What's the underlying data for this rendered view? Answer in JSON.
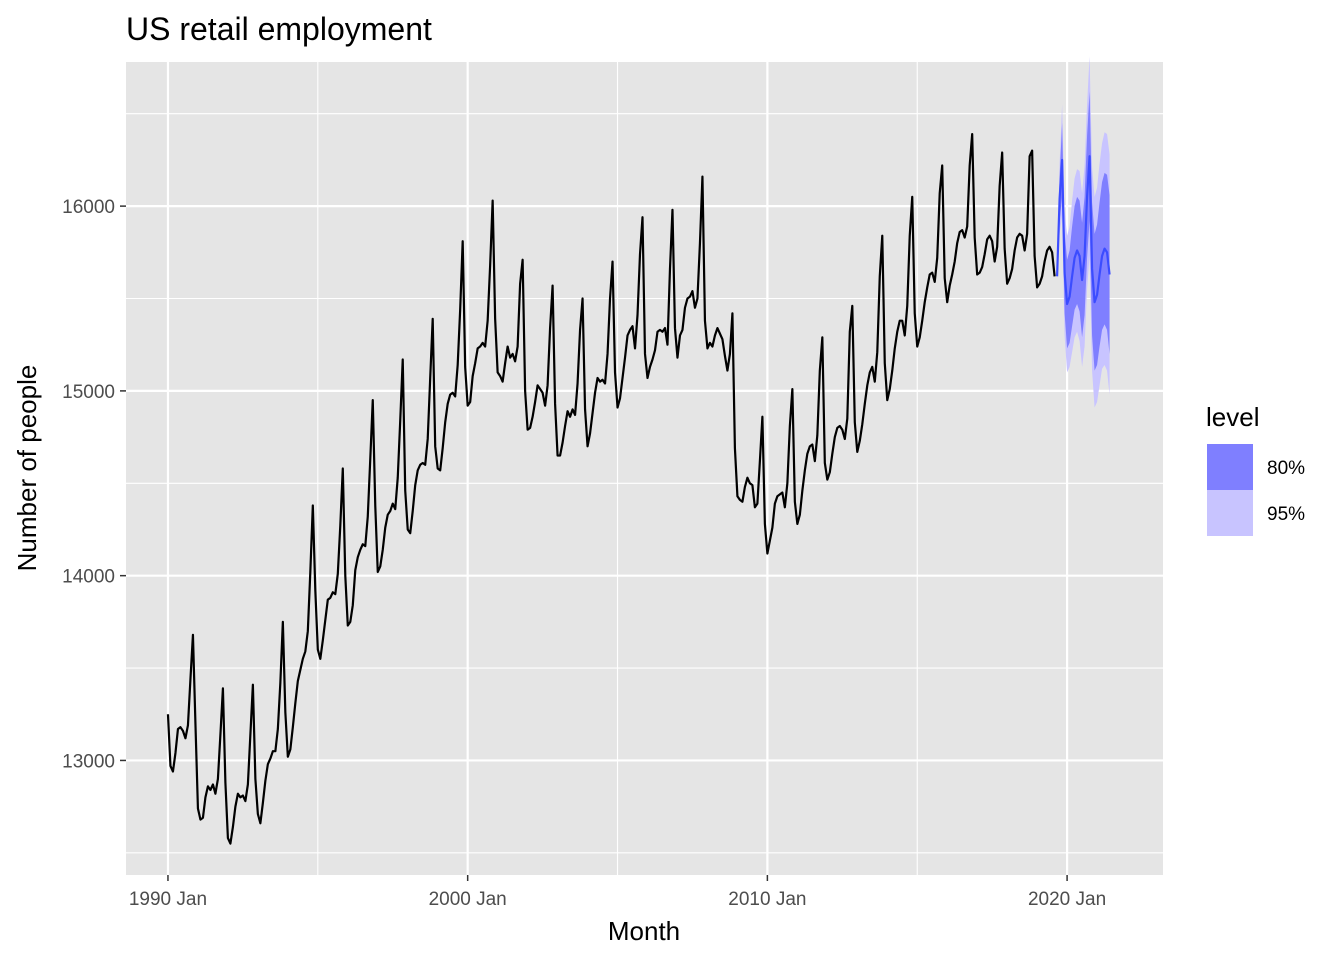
{
  "chart_data": {
    "type": "line",
    "title": "US retail employment",
    "xlabel": "Month",
    "ylabel": "Number of people",
    "xlim": [
      1988.6,
      2023.2
    ],
    "ylim": [
      12380,
      16780
    ],
    "x_ticks": [
      {
        "value": 1990,
        "label": "1990 Jan"
      },
      {
        "value": 2000,
        "label": "2000 Jan"
      },
      {
        "value": 2010,
        "label": "2010 Jan"
      },
      {
        "value": 2020,
        "label": "2020 Jan"
      }
    ],
    "y_ticks": [
      13000,
      14000,
      15000,
      16000
    ],
    "grid": true,
    "legend": {
      "title": "level",
      "placement": "right",
      "items": [
        {
          "label": "80%",
          "color": "#7f7fff"
        },
        {
          "label": "95%",
          "color": "#c8c4ff"
        }
      ]
    },
    "colors": {
      "panel": "#e5e5e5",
      "grid": "#ffffff",
      "history": "#000000",
      "forecast": "#3b4cff"
    },
    "history_yearly": [
      {
        "year": 1990,
        "values": [
          13250,
          12970,
          12940,
          13040,
          13170,
          13180,
          13160,
          13120,
          13190,
          13440,
          13680,
          13200
        ]
      },
      {
        "year": 1991,
        "values": [
          12740,
          12680,
          12690,
          12800,
          12860,
          12840,
          12870,
          12820,
          12900,
          13140,
          13390,
          12880
        ]
      },
      {
        "year": 1992,
        "values": [
          12580,
          12550,
          12640,
          12750,
          12820,
          12800,
          12810,
          12780,
          12870,
          13140,
          13410,
          12900
        ]
      },
      {
        "year": 1993,
        "values": [
          12710,
          12660,
          12770,
          12890,
          12980,
          13010,
          13050,
          13050,
          13170,
          13420,
          13750,
          13260
        ]
      },
      {
        "year": 1994,
        "values": [
          13020,
          13060,
          13180,
          13310,
          13430,
          13490,
          13550,
          13590,
          13700,
          14020,
          14380,
          13920
        ]
      },
      {
        "year": 1995,
        "values": [
          13600,
          13550,
          13650,
          13760,
          13870,
          13880,
          13910,
          13900,
          14010,
          14270,
          14580,
          14000
        ]
      },
      {
        "year": 1996,
        "values": [
          13730,
          13750,
          13840,
          14030,
          14100,
          14140,
          14170,
          14160,
          14320,
          14630,
          14950,
          14380
        ]
      },
      {
        "year": 1997,
        "values": [
          14020,
          14050,
          14140,
          14260,
          14330,
          14350,
          14390,
          14360,
          14530,
          14840,
          15170,
          14460
        ]
      },
      {
        "year": 1998,
        "values": [
          14250,
          14230,
          14350,
          14490,
          14570,
          14600,
          14610,
          14600,
          14740,
          15070,
          15390,
          14700
        ]
      },
      {
        "year": 1999,
        "values": [
          14580,
          14570,
          14690,
          14830,
          14930,
          14980,
          14990,
          14970,
          15140,
          15440,
          15810,
          15130
        ]
      },
      {
        "year": 2000,
        "values": [
          14920,
          14940,
          15080,
          15150,
          15230,
          15240,
          15260,
          15240,
          15380,
          15680,
          16030,
          15390
        ]
      },
      {
        "year": 2001,
        "values": [
          15100,
          15080,
          15050,
          15150,
          15240,
          15180,
          15200,
          15160,
          15240,
          15580,
          15710,
          15000
        ]
      },
      {
        "year": 2002,
        "values": [
          14790,
          14800,
          14860,
          14940,
          15030,
          15010,
          14990,
          14920,
          15030,
          15340,
          15570,
          14930
        ]
      },
      {
        "year": 2003,
        "values": [
          14650,
          14650,
          14720,
          14810,
          14890,
          14860,
          14900,
          14870,
          15040,
          15330,
          15500,
          14900
        ]
      },
      {
        "year": 2004,
        "values": [
          14700,
          14770,
          14880,
          14990,
          15070,
          15050,
          15060,
          15040,
          15200,
          15500,
          15700,
          15100
        ]
      },
      {
        "year": 2005,
        "values": [
          14910,
          14960,
          15070,
          15180,
          15300,
          15330,
          15350,
          15230,
          15410,
          15740,
          15940,
          15200
        ]
      },
      {
        "year": 2006,
        "values": [
          15070,
          15130,
          15170,
          15220,
          15320,
          15330,
          15320,
          15340,
          15250,
          15660,
          15980,
          15340
        ]
      },
      {
        "year": 2007,
        "values": [
          15180,
          15300,
          15330,
          15450,
          15500,
          15510,
          15540,
          15450,
          15500,
          15800,
          16160,
          15380
        ]
      },
      {
        "year": 2008,
        "values": [
          15230,
          15260,
          15240,
          15300,
          15340,
          15310,
          15280,
          15190,
          15110,
          15200,
          15420,
          14690
        ]
      },
      {
        "year": 2009,
        "values": [
          14430,
          14410,
          14400,
          14480,
          14530,
          14500,
          14490,
          14370,
          14390,
          14620,
          14860,
          14280
        ]
      },
      {
        "year": 2010,
        "values": [
          14120,
          14190,
          14260,
          14390,
          14430,
          14440,
          14450,
          14370,
          14500,
          14810,
          15010,
          14400
        ]
      },
      {
        "year": 2011,
        "values": [
          14280,
          14330,
          14460,
          14570,
          14660,
          14700,
          14710,
          14620,
          14760,
          15110,
          15290,
          14610
        ]
      },
      {
        "year": 2012,
        "values": [
          14520,
          14560,
          14660,
          14750,
          14800,
          14810,
          14790,
          14740,
          14850,
          15320,
          15460,
          14830
        ]
      },
      {
        "year": 2013,
        "values": [
          14670,
          14730,
          14820,
          14930,
          15030,
          15100,
          15130,
          15050,
          15210,
          15620,
          15840,
          15150
        ]
      },
      {
        "year": 2014,
        "values": [
          14950,
          15010,
          15110,
          15230,
          15320,
          15380,
          15380,
          15300,
          15460,
          15840,
          16050,
          15420
        ]
      },
      {
        "year": 2015,
        "values": [
          15240,
          15290,
          15380,
          15480,
          15560,
          15630,
          15640,
          15590,
          15720,
          16070,
          16220,
          15610
        ]
      },
      {
        "year": 2016,
        "values": [
          15480,
          15570,
          15630,
          15700,
          15800,
          15860,
          15870,
          15830,
          15890,
          16220,
          16390,
          15830
        ]
      },
      {
        "year": 2017,
        "values": [
          15630,
          15640,
          15670,
          15740,
          15820,
          15840,
          15810,
          15700,
          15780,
          16110,
          16290,
          15770
        ]
      },
      {
        "year": 2018,
        "values": [
          15580,
          15610,
          15660,
          15760,
          15830,
          15850,
          15840,
          15760,
          15850,
          16270,
          16300,
          15730
        ]
      },
      {
        "year": 2019,
        "values": [
          15560,
          15580,
          15620,
          15700,
          15760,
          15780,
          15750,
          15620
        ]
      }
    ],
    "forecast_start": "2019 Sep",
    "forecast": {
      "mean": [
        15620,
        16040,
        16250,
        15640,
        15470,
        15510,
        15620,
        15720,
        15760,
        15730,
        15600,
        15730,
        16050,
        16270,
        15660,
        15480,
        15520,
        15630,
        15730,
        15770,
        15750,
        15630
      ],
      "lo80": [
        15610,
        15920,
        16050,
        15420,
        15230,
        15260,
        15350,
        15440,
        15470,
        15430,
        15290,
        15410,
        15720,
        15920,
        15300,
        15110,
        15140,
        15240,
        15330,
        15360,
        15330,
        15200
      ],
      "hi80": [
        15630,
        16160,
        16450,
        15860,
        15710,
        15760,
        15890,
        16000,
        16050,
        16030,
        15910,
        16050,
        16380,
        16620,
        16020,
        15850,
        15900,
        16020,
        16130,
        16180,
        16170,
        16060
      ],
      "lo95": [
        15600,
        15850,
        15950,
        15300,
        15100,
        15130,
        15210,
        15290,
        15320,
        15270,
        15130,
        15240,
        15550,
        15730,
        15110,
        14910,
        14940,
        15030,
        15120,
        15140,
        15110,
        14980
      ],
      "hi95": [
        15640,
        16230,
        16550,
        15980,
        15840,
        15890,
        16030,
        16150,
        16200,
        16190,
        16070,
        16220,
        16550,
        16810,
        16210,
        16050,
        16100,
        16230,
        16340,
        16400,
        16390,
        16280
      ]
    }
  }
}
